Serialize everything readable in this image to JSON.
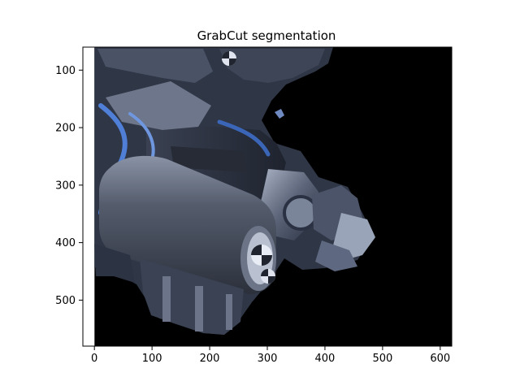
{
  "chart_data": {
    "type": "image",
    "title": "GrabCut segmentation",
    "xlabel": "",
    "ylabel": "",
    "xlim": [
      -20,
      620
    ],
    "ylim": [
      580,
      60
    ],
    "image_extent": {
      "x": [
        0,
        620
      ],
      "y": [
        60,
        580
      ]
    },
    "xticks": [
      0,
      100,
      200,
      300,
      400,
      500,
      600
    ],
    "yticks": [
      100,
      200,
      300,
      400,
      500
    ],
    "background_color": "#000000",
    "subject": "robotic-arm-segmented",
    "colors": {
      "metal_dark": "#2a3142",
      "metal_mid": "#5b6478",
      "metal_light": "#aeb7c8",
      "accent_blue": "#4f7fd6",
      "cylinder_body": "#3c4250",
      "cylinder_highlight": "#8a93a6",
      "target_marker": "#e8ecf4"
    }
  }
}
